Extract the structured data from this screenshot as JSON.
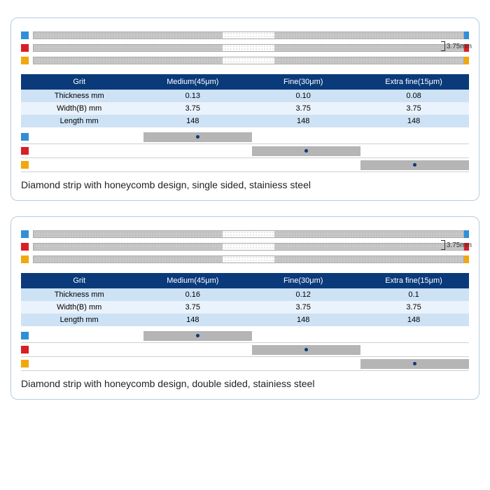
{
  "colors": {
    "blue_marker": "#2f8fd8",
    "red_marker": "#d81f26",
    "yellow_marker": "#f0a80c",
    "header_bg": "#0b3a7a",
    "row_light": "#cde2f5",
    "row_lighter": "#eaf2fb",
    "bar_fill": "#b5b5b5",
    "dot": "#0b3a7a"
  },
  "dim_label": "3.75mm",
  "panels": [
    {
      "caption": "Diamond strip with honeycomb design, single sided, stainiess steel",
      "strip_markers": [
        "#2f8fd8",
        "#d81f26",
        "#f0a80c"
      ],
      "table": {
        "headers": [
          "Grit",
          "Medium(45μm)",
          "Fine(30μm)",
          "Extra fine(15μm)"
        ],
        "rows": [
          {
            "label": "Thickness mm",
            "vals": [
              "0.13",
              "0.10",
              "0.08"
            ],
            "bg": "#cde2f5"
          },
          {
            "label": "Width(B) mm",
            "vals": [
              "3.75",
              "3.75",
              "3.75"
            ],
            "bg": "#eaf2fb"
          },
          {
            "label": "Length mm",
            "vals": [
              "148",
              "148",
              "148"
            ],
            "bg": "#cde2f5"
          }
        ]
      },
      "bars": [
        {
          "marker": "#2f8fd8",
          "left_pct": 26,
          "width_pct": 24.666
        },
        {
          "marker": "#d81f26",
          "left_pct": 50.666,
          "width_pct": 24.666
        },
        {
          "marker": "#f0a80c",
          "left_pct": 75.333,
          "width_pct": 24.666
        }
      ]
    },
    {
      "caption": "Diamond strip with honeycomb design, double sided, stainiess steel",
      "strip_markers": [
        "#2f8fd8",
        "#d81f26",
        "#f0a80c"
      ],
      "table": {
        "headers": [
          "Grit",
          "Medium(45μm)",
          "Fine(30μm)",
          "Extra fine(15μm)"
        ],
        "rows": [
          {
            "label": "Thickness mm",
            "vals": [
              "0.16",
              "0.12",
              "0.1"
            ],
            "bg": "#cde2f5"
          },
          {
            "label": "Width(B) mm",
            "vals": [
              "3.75",
              "3.75",
              "3.75"
            ],
            "bg": "#eaf2fb"
          },
          {
            "label": "Length mm",
            "vals": [
              "148",
              "148",
              "148"
            ],
            "bg": "#cde2f5"
          }
        ]
      },
      "bars": [
        {
          "marker": "#2f8fd8",
          "left_pct": 26,
          "width_pct": 24.666
        },
        {
          "marker": "#d81f26",
          "left_pct": 50.666,
          "width_pct": 24.666
        },
        {
          "marker": "#f0a80c",
          "left_pct": 75.333,
          "width_pct": 24.666
        }
      ]
    }
  ]
}
